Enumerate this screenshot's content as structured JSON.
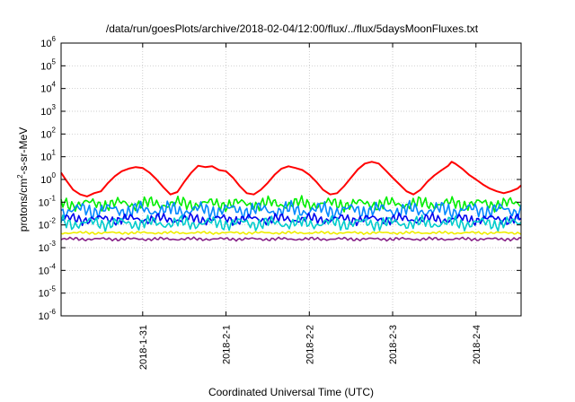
{
  "chart_data": {
    "type": "line",
    "title": "/data/run/goesPlots/archive/2018-02-04/12:00/flux/../flux/5daysMoonFluxes.txt",
    "xlabel": "Coordinated Universal Time (UTC)",
    "ylabel_parts": [
      "protons/cm",
      "2",
      "-s-sr-MeV"
    ],
    "yscale": "log",
    "ylim_exp": [
      -6,
      6
    ],
    "y_ticks": [
      {
        "base": "10",
        "exp": "-6"
      },
      {
        "base": "10",
        "exp": "-5"
      },
      {
        "base": "10",
        "exp": "-4"
      },
      {
        "base": "10",
        "exp": "-3"
      },
      {
        "base": "10",
        "exp": "-2"
      },
      {
        "base": "10",
        "exp": "-1"
      },
      {
        "base": "10",
        "exp": "0"
      },
      {
        "base": "10",
        "exp": "1"
      },
      {
        "base": "10",
        "exp": "2"
      },
      {
        "base": "10",
        "exp": "3"
      },
      {
        "base": "10",
        "exp": "4"
      },
      {
        "base": "10",
        "exp": "5"
      },
      {
        "base": "10",
        "exp": "6"
      }
    ],
    "xlim": [
      "2018-01-30T00:30",
      "2018-02-04T13:00"
    ],
    "x_ticks": [
      {
        "x": "2018-01-31T00:00",
        "label": "2018-1-31"
      },
      {
        "x": "2018-02-01T00:00",
        "label": "2018-2-1"
      },
      {
        "x": "2018-02-02T00:00",
        "label": "2018-2-2"
      },
      {
        "x": "2018-02-03T00:00",
        "label": "2018-2-3"
      },
      {
        "x": "2018-02-04T00:00",
        "label": "2018-2-4"
      }
    ],
    "grid": true,
    "series": [
      {
        "color": "#ff0000",
        "points": [
          [
            "2018-01-30T00:30",
            2.0
          ],
          [
            "2018-01-30T02:00",
            0.9
          ],
          [
            "2018-01-30T04:00",
            0.35
          ],
          [
            "2018-01-30T06:00",
            0.22
          ],
          [
            "2018-01-30T08:00",
            0.18
          ],
          [
            "2018-01-30T10:00",
            0.25
          ],
          [
            "2018-01-30T12:00",
            0.3
          ],
          [
            "2018-01-30T14:00",
            0.7
          ],
          [
            "2018-01-30T16:00",
            1.4
          ],
          [
            "2018-01-30T18:00",
            2.3
          ],
          [
            "2018-01-30T20:00",
            3.0
          ],
          [
            "2018-01-30T22:00",
            3.5
          ],
          [
            "2018-01-31T00:00",
            3.2
          ],
          [
            "2018-01-31T02:00",
            2.0
          ],
          [
            "2018-01-31T04:00",
            1.0
          ],
          [
            "2018-01-31T06:00",
            0.45
          ],
          [
            "2018-01-31T08:00",
            0.22
          ],
          [
            "2018-01-31T10:00",
            0.28
          ],
          [
            "2018-01-31T12:00",
            0.8
          ],
          [
            "2018-01-31T14:00",
            2.0
          ],
          [
            "2018-01-31T16:00",
            4.0
          ],
          [
            "2018-01-31T18:00",
            3.5
          ],
          [
            "2018-01-31T20:00",
            3.8
          ],
          [
            "2018-01-31T22:00",
            2.6
          ],
          [
            "2018-02-01T00:00",
            2.3
          ],
          [
            "2018-02-01T02:00",
            1.2
          ],
          [
            "2018-02-01T04:00",
            0.5
          ],
          [
            "2018-02-01T06:00",
            0.25
          ],
          [
            "2018-02-01T08:00",
            0.22
          ],
          [
            "2018-02-01T10:00",
            0.35
          ],
          [
            "2018-02-01T12:00",
            0.7
          ],
          [
            "2018-02-01T14:00",
            1.6
          ],
          [
            "2018-02-01T16:00",
            3.0
          ],
          [
            "2018-02-01T18:00",
            3.8
          ],
          [
            "2018-02-01T20:00",
            3.2
          ],
          [
            "2018-02-01T22:00",
            2.6
          ],
          [
            "2018-02-02T00:00",
            1.6
          ],
          [
            "2018-02-02T02:00",
            0.8
          ],
          [
            "2018-02-02T04:00",
            0.35
          ],
          [
            "2018-02-02T06:00",
            0.22
          ],
          [
            "2018-02-02T08:00",
            0.25
          ],
          [
            "2018-02-02T10:00",
            0.5
          ],
          [
            "2018-02-02T12:00",
            1.2
          ],
          [
            "2018-02-02T14:00",
            2.8
          ],
          [
            "2018-02-02T16:00",
            5.0
          ],
          [
            "2018-02-02T18:00",
            6.0
          ],
          [
            "2018-02-02T20:00",
            5.0
          ],
          [
            "2018-02-02T22:00",
            2.5
          ],
          [
            "2018-02-03T00:00",
            1.2
          ],
          [
            "2018-02-03T02:00",
            0.6
          ],
          [
            "2018-02-03T04:00",
            0.3
          ],
          [
            "2018-02-03T06:00",
            0.22
          ],
          [
            "2018-02-03T08:00",
            0.35
          ],
          [
            "2018-02-03T10:00",
            0.8
          ],
          [
            "2018-02-03T12:00",
            1.5
          ],
          [
            "2018-02-03T14:00",
            2.5
          ],
          [
            "2018-02-03T16:00",
            4.0
          ],
          [
            "2018-02-03T17:00",
            6.0
          ],
          [
            "2018-02-03T18:00",
            5.0
          ],
          [
            "2018-02-03T20:00",
            3.0
          ],
          [
            "2018-02-03T22:00",
            1.6
          ],
          [
            "2018-02-04T00:00",
            1.0
          ],
          [
            "2018-02-04T02:00",
            0.6
          ],
          [
            "2018-02-04T04:00",
            0.4
          ],
          [
            "2018-02-04T06:00",
            0.3
          ],
          [
            "2018-02-04T08:00",
            0.25
          ],
          [
            "2018-02-04T10:00",
            0.3
          ],
          [
            "2018-02-04T12:00",
            0.4
          ],
          [
            "2018-02-04T13:00",
            0.55
          ]
        ]
      },
      {
        "color": "#00ee00",
        "level": 0.085,
        "spread": 0.25
      },
      {
        "color": "#0088ff",
        "level": 0.045,
        "spread": 0.3
      },
      {
        "color": "#0000ee",
        "level": 0.018,
        "spread": 0.2
      },
      {
        "color": "#00cccc",
        "level": 0.012,
        "spread": 0.25
      },
      {
        "color": "#eeee00",
        "level": 0.0045,
        "spread": 0.05
      },
      {
        "color": "#882288",
        "level": 0.0024,
        "spread": 0.06
      }
    ]
  }
}
